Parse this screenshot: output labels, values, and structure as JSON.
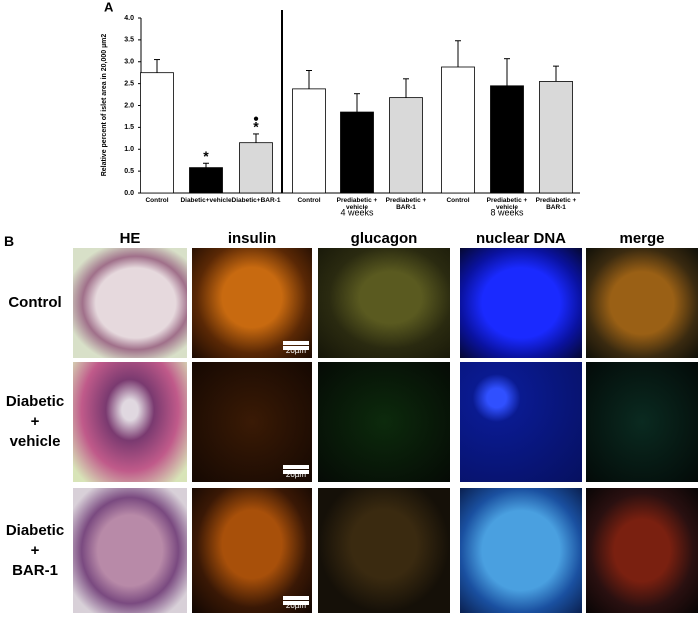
{
  "chart_data": {
    "type": "bar",
    "panel": "A",
    "y_label": "Relative percent of islet area in  20,000 µm2",
    "categories": [
      "Control",
      "Diabetic+vehicle",
      "Diabetic+BAR-1",
      "Control",
      "Prediabetic + vehicle",
      "Prediabetic + BAR-1",
      "Control",
      "Prediabetic + vehicle",
      "Prediabetic + BAR-1"
    ],
    "values": [
      2.75,
      0.58,
      1.15,
      2.38,
      1.85,
      2.18,
      2.88,
      2.45,
      2.55
    ],
    "errors": [
      0.3,
      0.1,
      0.2,
      0.42,
      0.42,
      0.43,
      0.6,
      0.62,
      0.35
    ],
    "colors": [
      "#ffffff",
      "#000000",
      "#d9d9d9",
      "#ffffff",
      "#000000",
      "#d9d9d9",
      "#ffffff",
      "#000000",
      "#d9d9d9"
    ],
    "markers": [
      null,
      [
        "*"
      ],
      [
        "●",
        "*"
      ],
      null,
      null,
      null,
      null,
      null,
      null
    ],
    "group_labels": [
      "4 weeks",
      "8 weeks"
    ],
    "ylim": [
      0,
      4
    ],
    "yticks": [
      {
        "value": 0,
        "label": "0.0"
      },
      {
        "value": 0.5,
        "label": "0.5"
      },
      {
        "value": 1,
        "label": "1.0"
      },
      {
        "value": 1.5,
        "label": "1.5"
      },
      {
        "value": 2,
        "label": "2.0"
      },
      {
        "value": 2.5,
        "label": "2.5"
      },
      {
        "value": 3,
        "label": "3.0"
      },
      {
        "value": 3.5,
        "label": "3.5"
      },
      {
        "value": 4,
        "label": "4.0"
      }
    ]
  },
  "panel_b": {
    "label": "B",
    "columns": [
      "HE",
      "insulin",
      "glucagon",
      "nuclear DNA",
      "merge"
    ],
    "rows": [
      [
        "Control"
      ],
      [
        "Diabetic",
        "+",
        "vehicle"
      ],
      [
        "Diabetic",
        "+",
        "BAR-1"
      ]
    ],
    "scale_bar": "20µm"
  }
}
